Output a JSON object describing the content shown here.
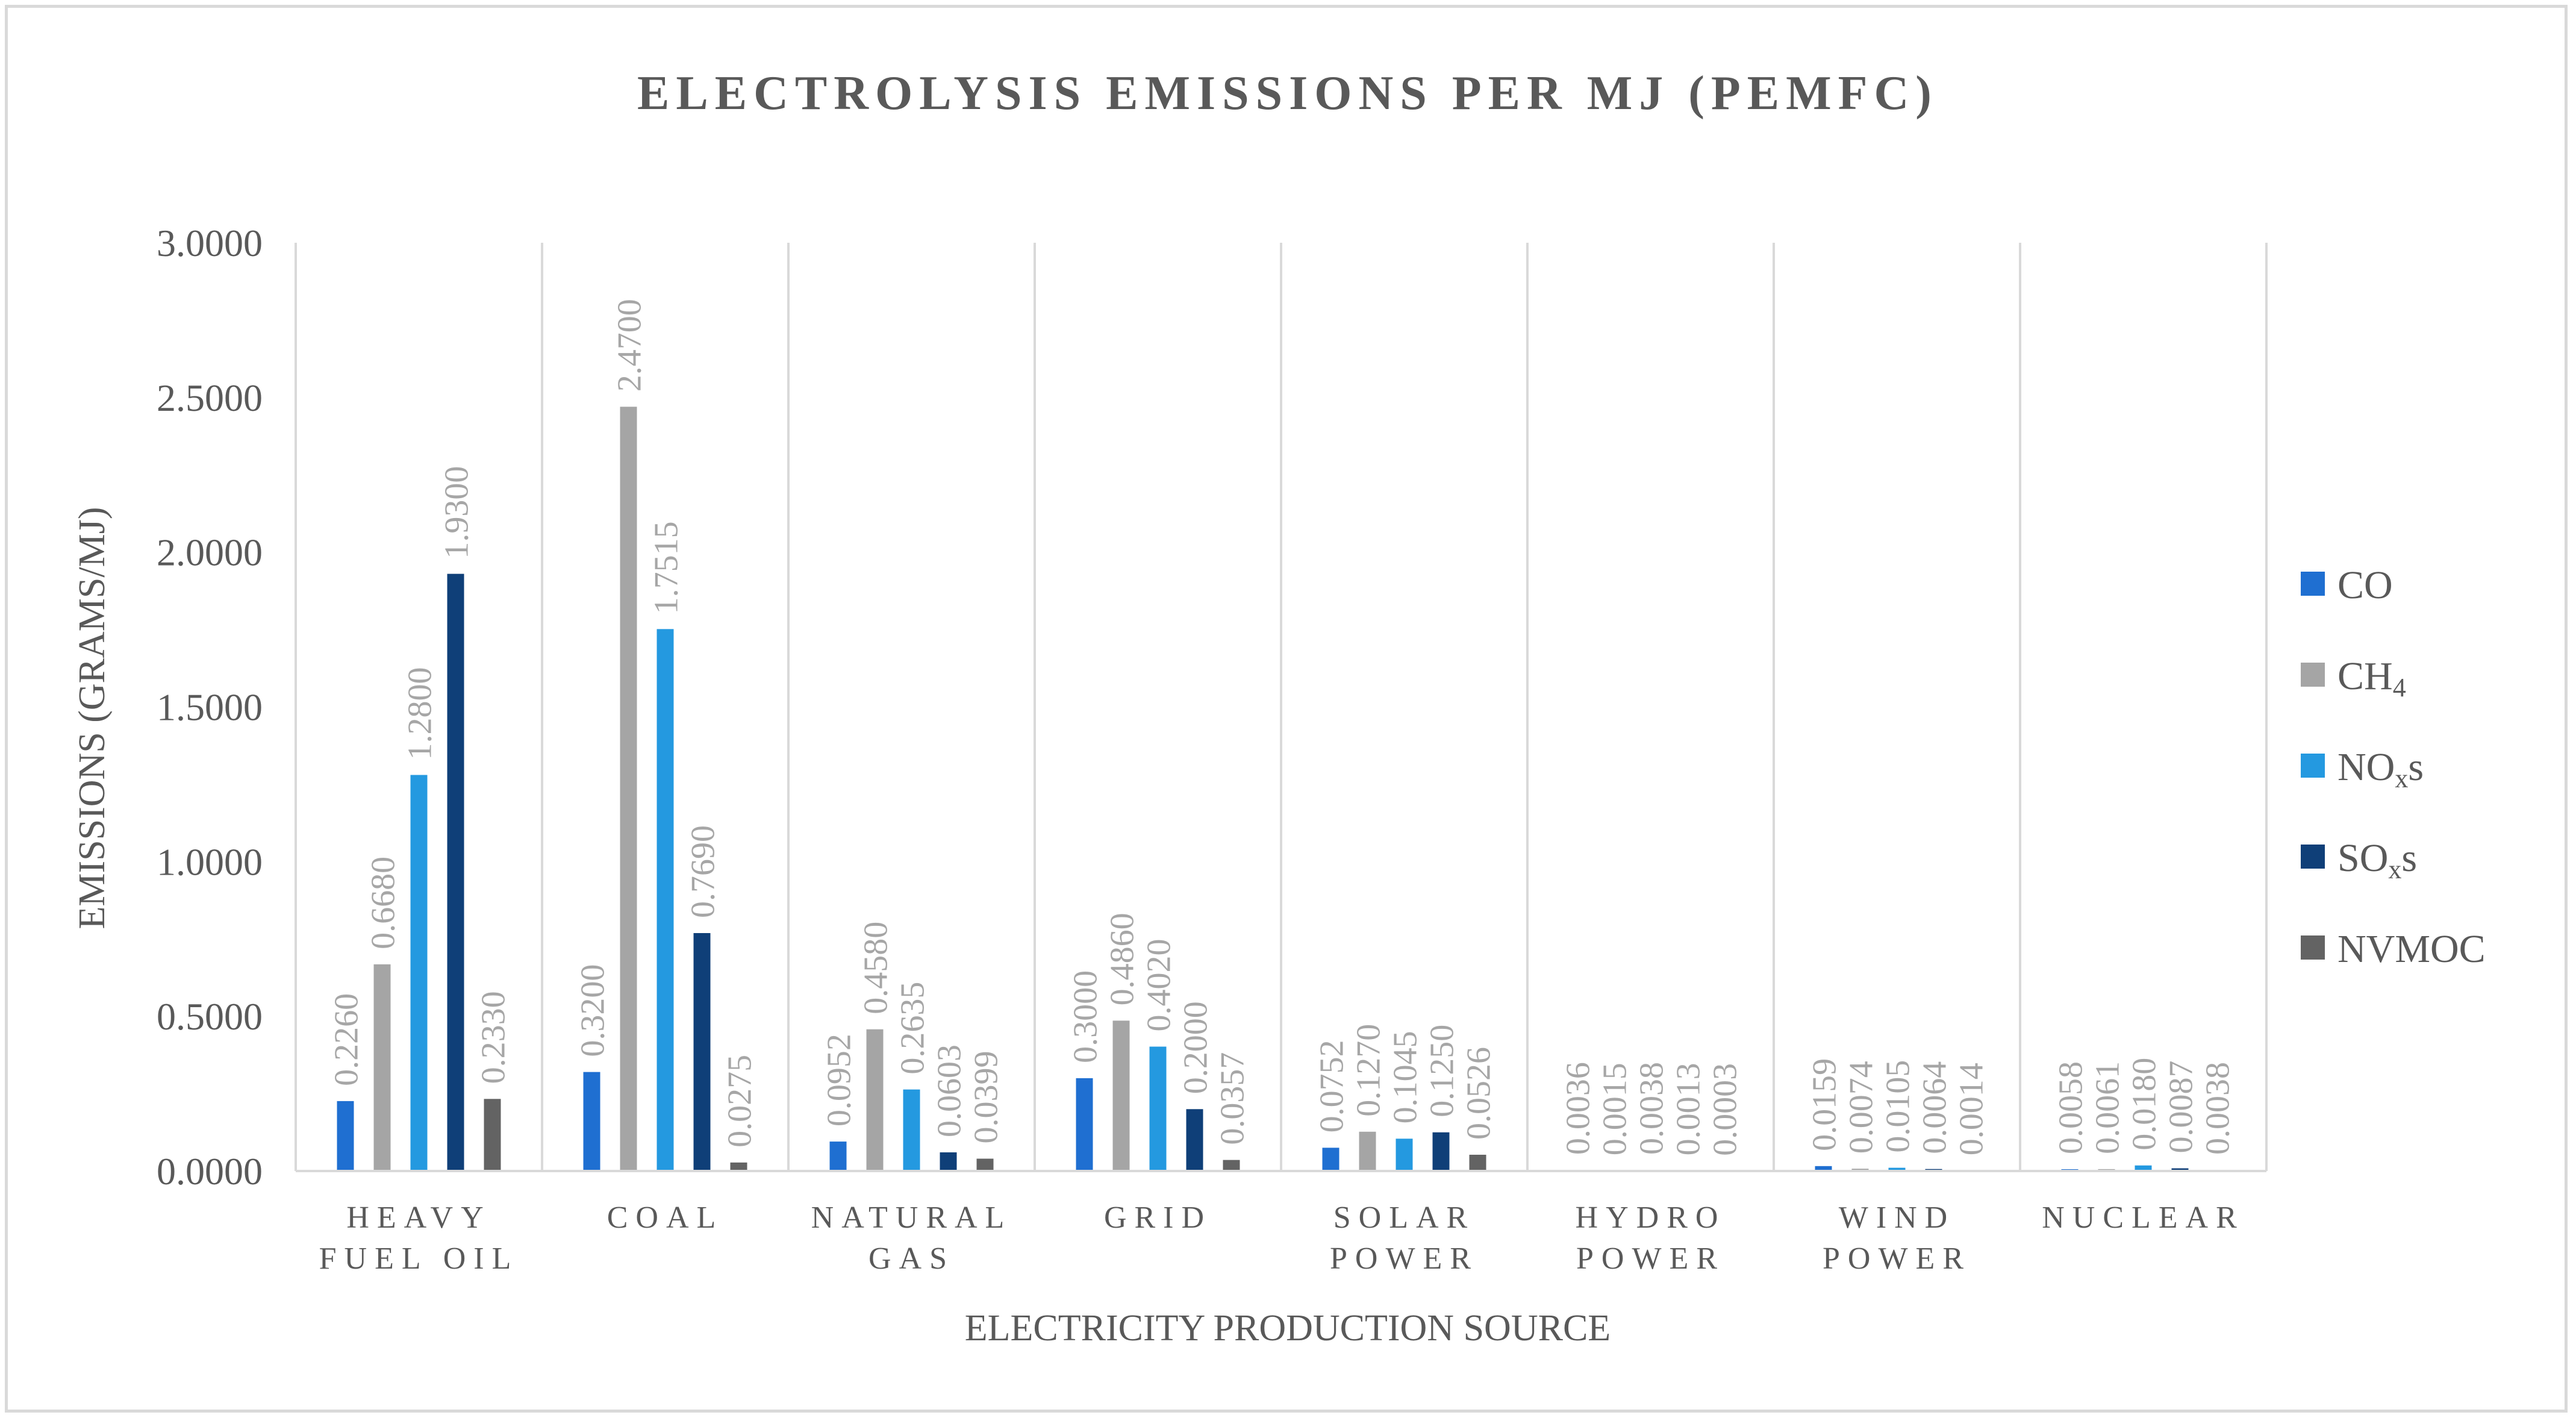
{
  "chart_data": {
    "type": "bar",
    "title": "ELECTROLYSIS EMISSIONS PER MJ (PEMFC)",
    "xlabel": "ELECTRICITY PRODUCTION SOURCE",
    "ylabel": "EMISSIONS (GRAMS/MJ)",
    "ylim": [
      0,
      3
    ],
    "yticks": [
      "0.0000",
      "0.5000",
      "1.0000",
      "1.5000",
      "2.0000",
      "2.5000",
      "3.0000"
    ],
    "ytick_values": [
      0,
      0.5,
      1,
      1.5,
      2,
      2.5,
      3
    ],
    "categories": [
      [
        "HEAVY",
        "FUEL OIL"
      ],
      [
        "COAL"
      ],
      [
        "NATURAL",
        "GAS"
      ],
      [
        "GRID"
      ],
      [
        "SOLAR",
        "POWER"
      ],
      [
        "HYDRO",
        "POWER"
      ],
      [
        "WIND",
        "POWER"
      ],
      [
        "NUCLEAR"
      ]
    ],
    "legend_position": "right",
    "grid": "vertical category separators",
    "series": [
      {
        "name": "CO",
        "name_main": "CO",
        "name_sub": "",
        "name_suffix": "",
        "color": "#1f6fd1",
        "values": [
          0.226,
          0.32,
          0.0952,
          0.3,
          0.0752,
          0.0036,
          0.0159,
          0.0058
        ],
        "labels": [
          "0.2260",
          "0.3200",
          "0.0952",
          "0.3000",
          "0.0752",
          "0.0036",
          "0.0159",
          "0.0058"
        ]
      },
      {
        "name": "CH4",
        "name_main": "CH",
        "name_sub": "4",
        "name_suffix": "",
        "color": "#a5a5a5",
        "values": [
          0.668,
          2.47,
          0.458,
          0.486,
          0.127,
          0.0015,
          0.0074,
          0.0061
        ],
        "labels": [
          "0.6680",
          "2.4700",
          "0.4580",
          "0.4860",
          "0.1270",
          "0.0015",
          "0.0074",
          "0.0061"
        ]
      },
      {
        "name": "NOxs",
        "name_main": "NO",
        "name_sub": "x",
        "name_suffix": "s",
        "color": "#2499e0",
        "values": [
          1.28,
          1.7515,
          0.2635,
          0.402,
          0.1045,
          0.0038,
          0.0105,
          0.018
        ],
        "labels": [
          "1.2800",
          "1.7515",
          "0.2635",
          "0.4020",
          "0.1045",
          "0.0038",
          "0.0105",
          "0.0180"
        ]
      },
      {
        "name": "SOxs",
        "name_main": "SO",
        "name_sub": "x",
        "name_suffix": "s",
        "color": "#0f3f78",
        "values": [
          1.93,
          0.769,
          0.0603,
          0.2,
          0.125,
          0.0013,
          0.0064,
          0.0087
        ],
        "labels": [
          "1.9300",
          "0.7690",
          "0.0603",
          "0.2000",
          "0.1250",
          "0.0013",
          "0.0064",
          "0.0087"
        ]
      },
      {
        "name": "NVMOC",
        "name_main": "NVMOC",
        "name_sub": "",
        "name_suffix": "",
        "color": "#636363",
        "values": [
          0.233,
          0.0275,
          0.0399,
          0.0357,
          0.0526,
          0.0003,
          0.0014,
          0.0038
        ],
        "labels": [
          "0.2330",
          "0.0275",
          "0.0399",
          "0.0357",
          "0.0526",
          "0.0003",
          "0.0014",
          "0.0038"
        ]
      }
    ]
  }
}
